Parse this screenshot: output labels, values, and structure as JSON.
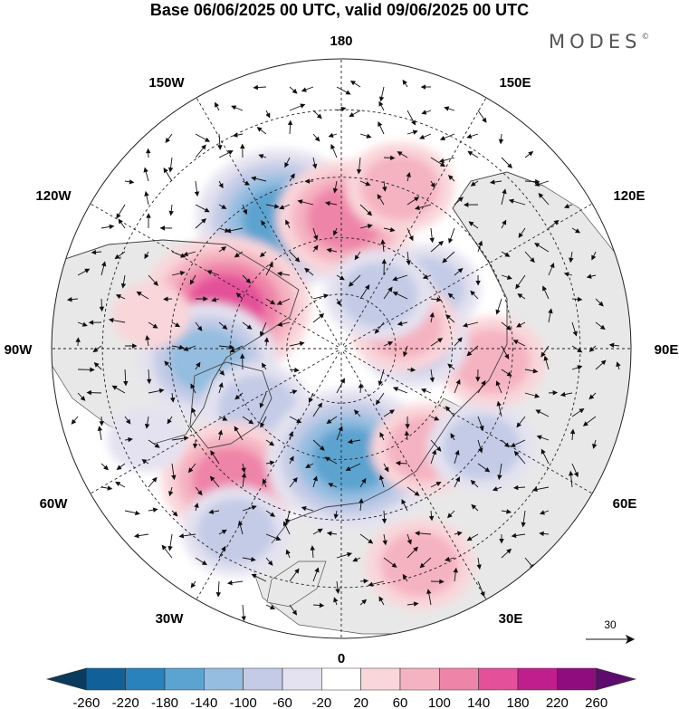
{
  "header": {
    "title": "Base 06/06/2025 00 UTC, valid 09/06/2025 00 UTC",
    "brand": "MODES",
    "brand_mark": "©"
  },
  "map": {
    "projection": "north polar stereographic",
    "longitude_labels": {
      "top": "180",
      "bottom": "0",
      "left": "90W",
      "right": "90E",
      "upper_left_1": "150W",
      "upper_left_2": "120W",
      "upper_right_1": "150E",
      "upper_right_2": "120E",
      "lower_left_1": "60W",
      "lower_left_2": "30W",
      "lower_right_1": "60E",
      "lower_right_2": "30E"
    },
    "reference_vector": {
      "label": "30"
    },
    "colors": {
      "land": "#e8e8e8",
      "ocean": "#ffffff",
      "coast": "#444444"
    }
  },
  "colorbar": {
    "ticks": [
      "-260",
      "-220",
      "-180",
      "-140",
      "-100",
      "-60",
      "-20",
      "20",
      "60",
      "100",
      "140",
      "180",
      "220",
      "260"
    ],
    "colors": [
      "#0b3b5c",
      "#12609a",
      "#2a82bd",
      "#5ba3d0",
      "#94bde0",
      "#c3cbe6",
      "#e4e2f0",
      "#ffffff",
      "#f9d6d9",
      "#f5b2c0",
      "#ef84a9",
      "#e4519a",
      "#c01e8c",
      "#8e0c7e",
      "#5e0a6e"
    ]
  },
  "anomaly_centers": [
    {
      "lon": -155,
      "lat": 52,
      "value": -140
    },
    {
      "lon": 178,
      "lat": 55,
      "value": 110
    },
    {
      "lon": -110,
      "lat": 57,
      "value": 160
    },
    {
      "lon": -85,
      "lat": 54,
      "value": -110
    },
    {
      "lon": -55,
      "lat": 62,
      "value": -80
    },
    {
      "lon": -40,
      "lat": 45,
      "value": 110
    },
    {
      "lon": -30,
      "lat": 36,
      "value": -90
    },
    {
      "lon": 5,
      "lat": 60,
      "value": -160
    },
    {
      "lon": 40,
      "lat": 55,
      "value": 80
    },
    {
      "lon": 55,
      "lat": 45,
      "value": -70
    },
    {
      "lon": 85,
      "lat": 50,
      "value": 80
    },
    {
      "lon": 95,
      "lat": 70,
      "value": -90
    },
    {
      "lon": 125,
      "lat": 62,
      "value": -70
    },
    {
      "lon": 110,
      "lat": 72,
      "value": 60
    },
    {
      "lon": 160,
      "lat": 45,
      "value": 70
    },
    {
      "lon": 20,
      "lat": 32,
      "value": 60
    },
    {
      "lon": 145,
      "lat": 72,
      "value": -60
    },
    {
      "lon": -100,
      "lat": 40,
      "value": 40
    },
    {
      "lon": -65,
      "lat": 35,
      "value": -40
    }
  ]
}
